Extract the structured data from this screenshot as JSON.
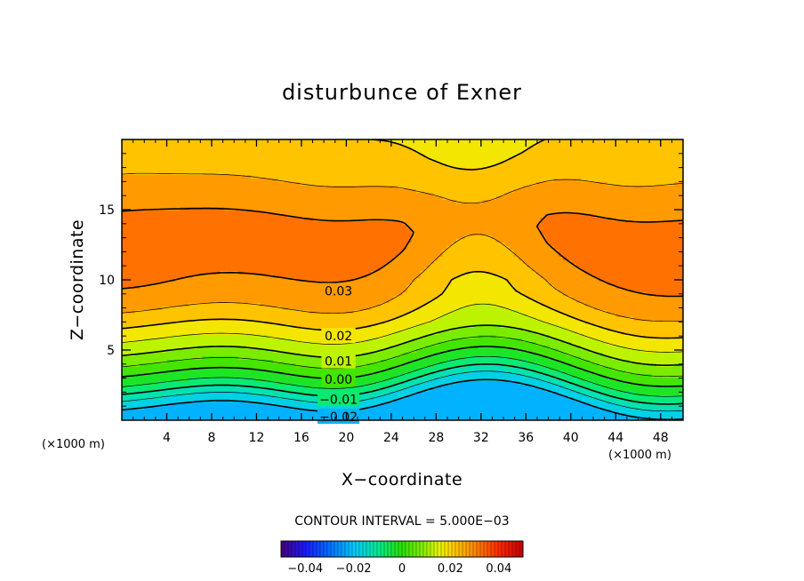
{
  "chart_data": {
    "type": "contour",
    "title": "disturbunce of Exner",
    "xlabel": "X−coordinate",
    "ylabel": "Z−coordinate",
    "x_units_left": "(×1000 m)",
    "x_units_right": "(×1000 m)",
    "xlim": [
      0,
      50
    ],
    "ylim": [
      0,
      20
    ],
    "x_ticks": [
      4,
      8,
      12,
      16,
      20,
      24,
      28,
      32,
      36,
      40,
      44,
      48
    ],
    "x_tick_labels": [
      "4",
      "8",
      "12",
      "16",
      "20",
      "24",
      "28",
      "32",
      "36",
      "40",
      "44",
      "48"
    ],
    "y_ticks": [
      5,
      10,
      15
    ],
    "y_tick_labels": [
      "5",
      "10",
      "15"
    ],
    "contour_interval_text": "CONTOUR INTERVAL = 5.000E−03",
    "contour_interval": 0.005,
    "contour_labels": [
      {
        "text": "0.03",
        "x": 19.3,
        "z": 9.2
      },
      {
        "text": "0.02",
        "x": 19.3,
        "z": 6.0
      },
      {
        "text": "0.01",
        "x": 19.3,
        "z": 4.2
      },
      {
        "text": "0.00",
        "x": 19.3,
        "z": 2.9
      },
      {
        "text": "−0.01",
        "x": 19.3,
        "z": 1.5
      },
      {
        "text": "−0.02",
        "x": 19.3,
        "z": 0.25
      }
    ],
    "colorbar": {
      "range": [
        -0.05,
        0.05
      ],
      "ticks": [
        -0.04,
        -0.02,
        0,
        0.02,
        0.04
      ],
      "tick_labels": [
        "−0.04",
        "−0.02",
        "0",
        "0.02",
        "0.04"
      ]
    },
    "colors": {
      "high": "#ff4800",
      "mid": "#ffd000",
      "zero": "#44e000",
      "low": "#00c0ff",
      "lowest": "#0070ff"
    }
  }
}
